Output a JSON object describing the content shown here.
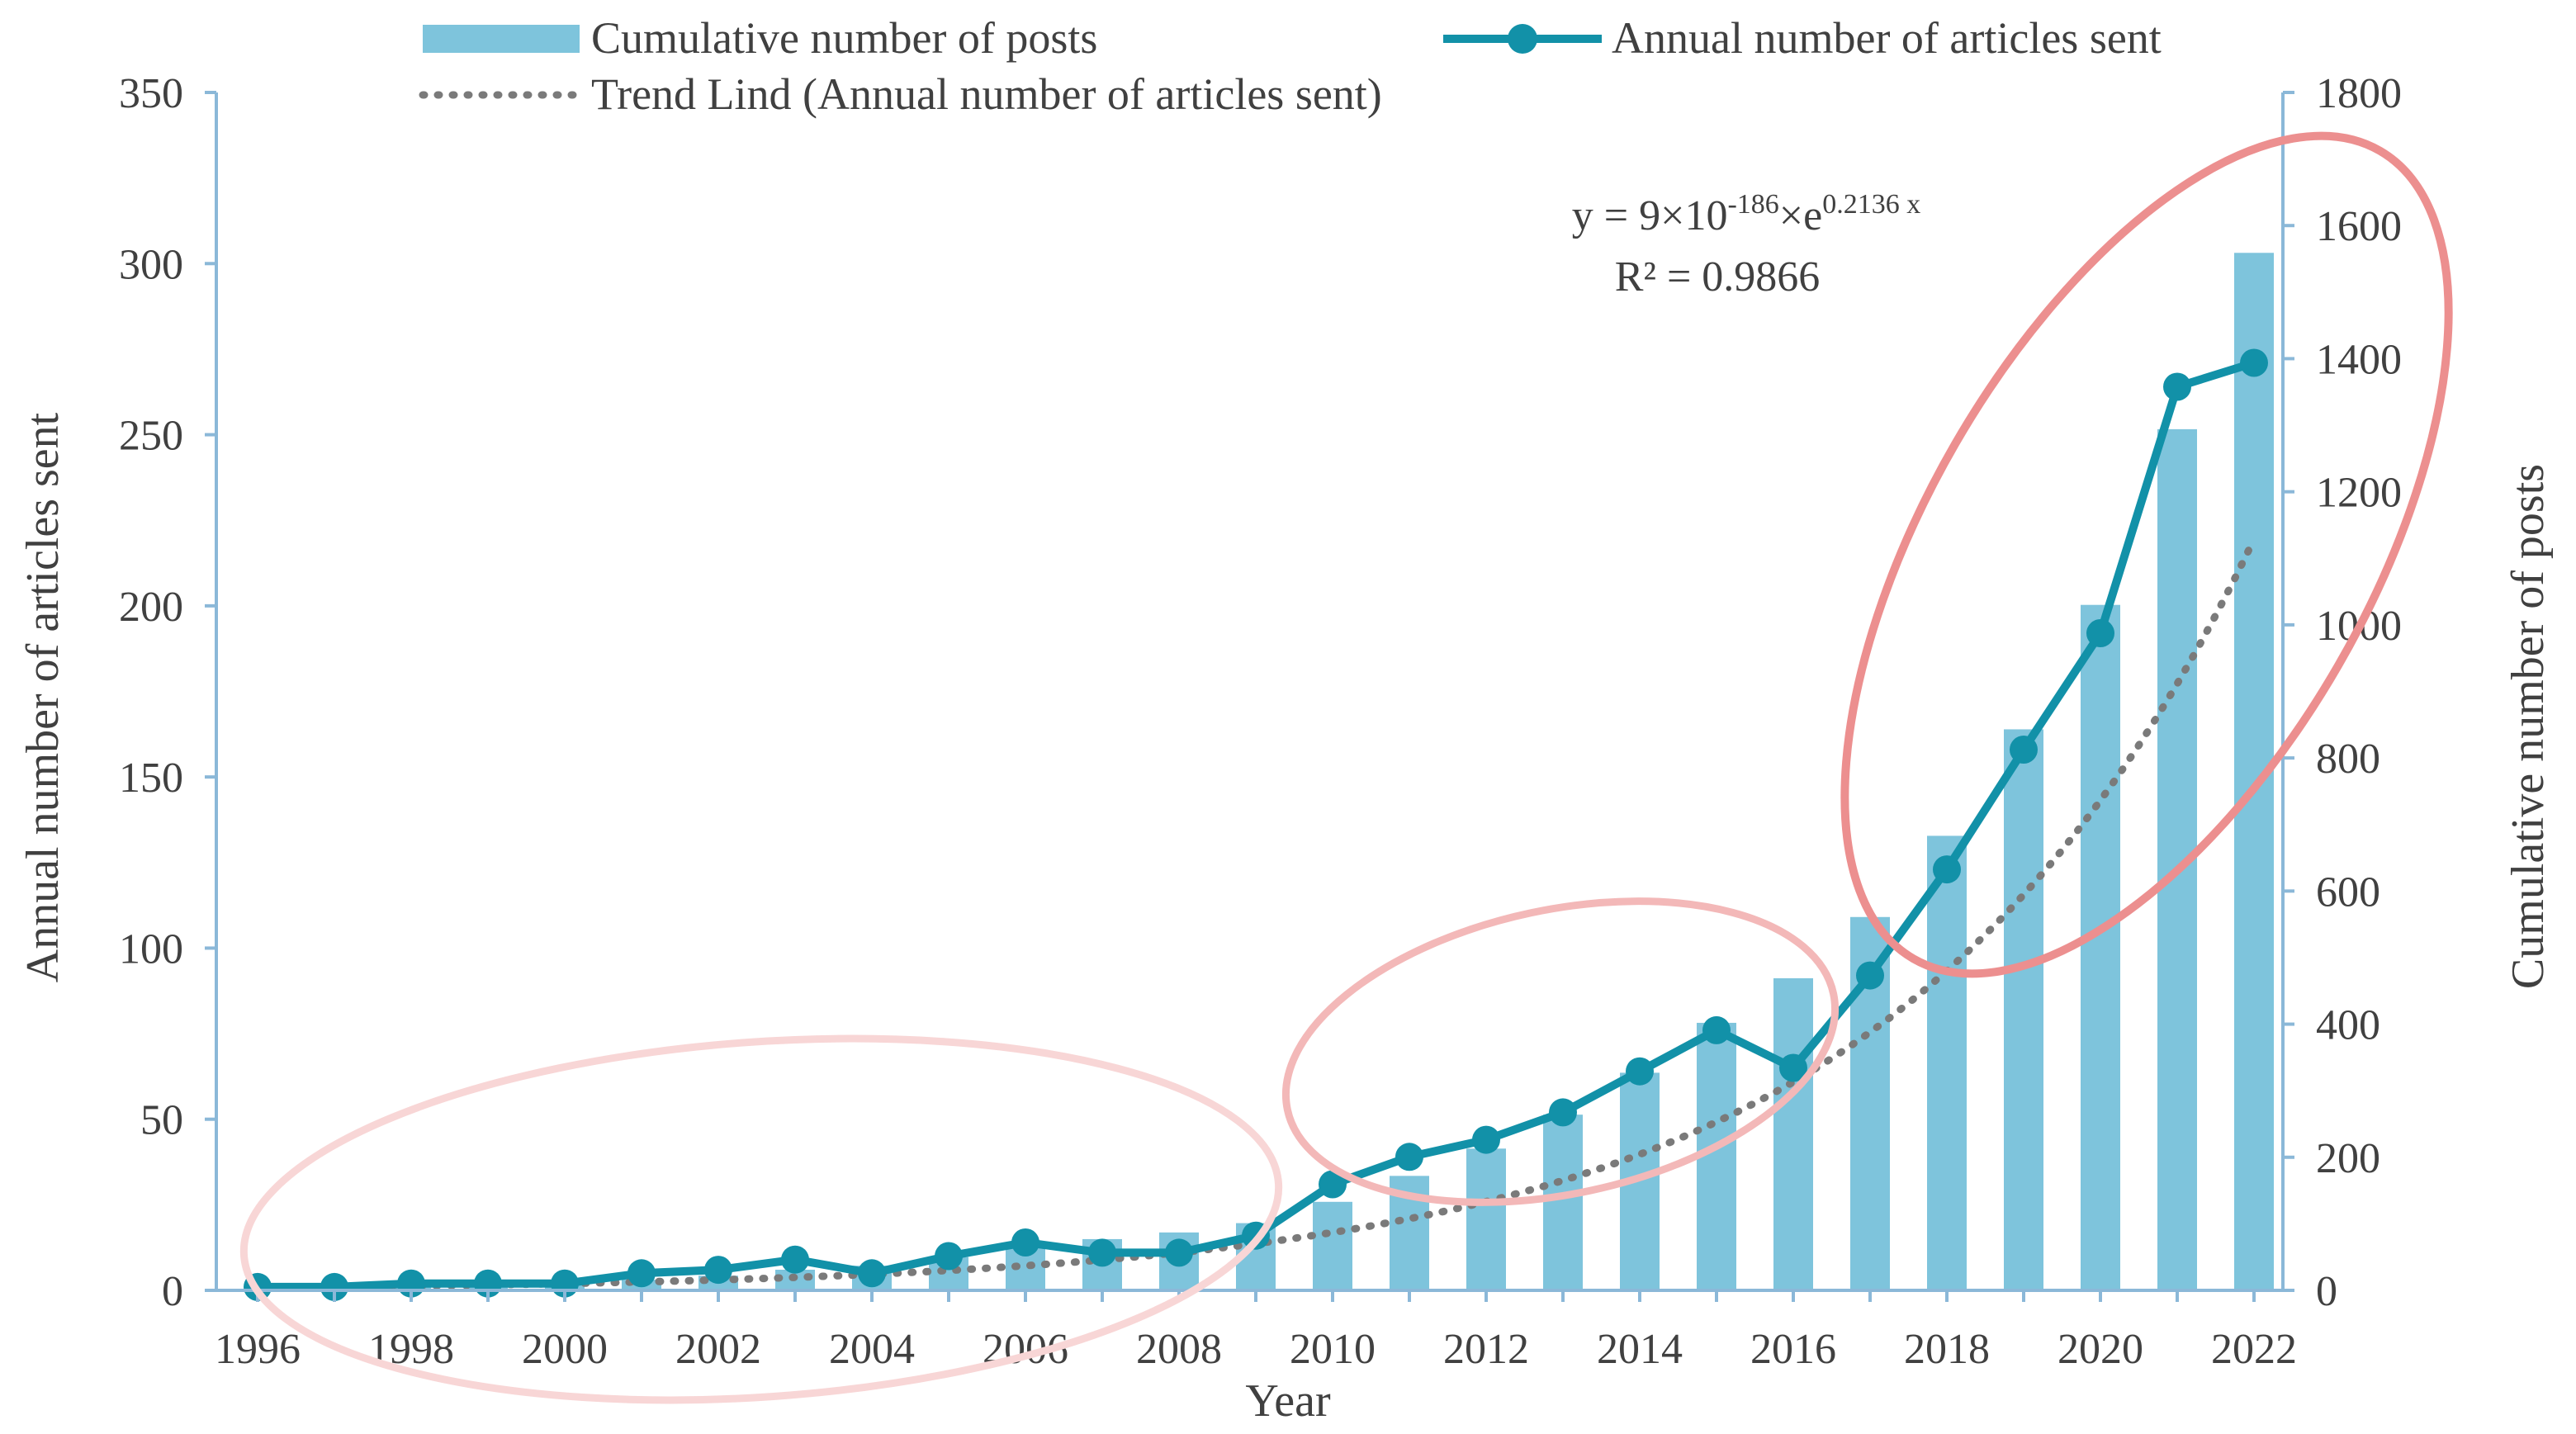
{
  "chart_data": {
    "type": "bar+line",
    "xlabel": "Year",
    "ylabel_left": "Annual number of articles sent",
    "ylabel_right": "Cumulative number of posts",
    "ylim_left": [
      0,
      350
    ],
    "ylim_right": [
      0,
      1800
    ],
    "yticks_left": [
      "0",
      "50",
      "100",
      "150",
      "200",
      "250",
      "300",
      "350"
    ],
    "yticks_right": [
      "0",
      "200",
      "400",
      "600",
      "800",
      "1000",
      "1200",
      "1400",
      "1600",
      "1800"
    ],
    "xtick_labels": [
      "1996",
      "1998",
      "2000",
      "2002",
      "2004",
      "2006",
      "2008",
      "2010",
      "2012",
      "2014",
      "2016",
      "2018",
      "2020",
      "2022"
    ],
    "categories": [
      1996,
      1997,
      1998,
      1999,
      2000,
      2001,
      2002,
      2003,
      2004,
      2005,
      2006,
      2007,
      2008,
      2009,
      2010,
      2011,
      2012,
      2013,
      2014,
      2015,
      2016,
      2017,
      2018,
      2019,
      2020,
      2021,
      2022
    ],
    "series": [
      {
        "name": "Cumulative number of posts",
        "type": "bar",
        "axis": "right",
        "color": "#7ec4dc",
        "values": [
          2,
          4,
          7,
          9,
          11,
          16,
          22,
          31,
          37,
          50,
          65,
          77,
          87,
          101,
          133,
          172,
          213,
          264,
          327,
          402,
          469,
          561,
          683,
          843,
          1030,
          1294,
          1559
        ]
      },
      {
        "name": "Annual number of articles sent",
        "type": "line",
        "axis": "left",
        "color": "#1291a8",
        "values": [
          1,
          1,
          2,
          2,
          2,
          5,
          6,
          9,
          5,
          10,
          14,
          11,
          11,
          16,
          31,
          39,
          44,
          52,
          64,
          76,
          65,
          92,
          123,
          158,
          192,
          264,
          271
        ]
      },
      {
        "name": "Trend Lind (Annual number of articles sent)",
        "type": "trendline",
        "axis": "left",
        "color": "#7a7a7a",
        "model": "exponential",
        "equation": "y = 9×10⁻¹⁸⁶×e^(0.2136x)",
        "r_squared": 0.9866
      }
    ],
    "legend": {
      "placement": "top",
      "bar_label": "Cumulative number of posts",
      "line_label": "Annual number of articles sent",
      "trend_label": "Trend Lind (Annual number of articles sent)"
    },
    "annotation": {
      "eq_prefix": "y = 9",
      "eq_times1": "×",
      "eq_base10": "10",
      "eq_exp10": "-186",
      "eq_times2": "×",
      "eq_base_e": "e",
      "eq_exp_e": "0.2136 x",
      "r2_text": "R² = 0.9866"
    },
    "highlight_ellipses": [
      {
        "label": "early-period",
        "color": "#f8d6d6"
      },
      {
        "label": "middle-period",
        "color": "#f3b8b8"
      },
      {
        "label": "recent-period",
        "color": "#ec8f8f"
      }
    ]
  }
}
